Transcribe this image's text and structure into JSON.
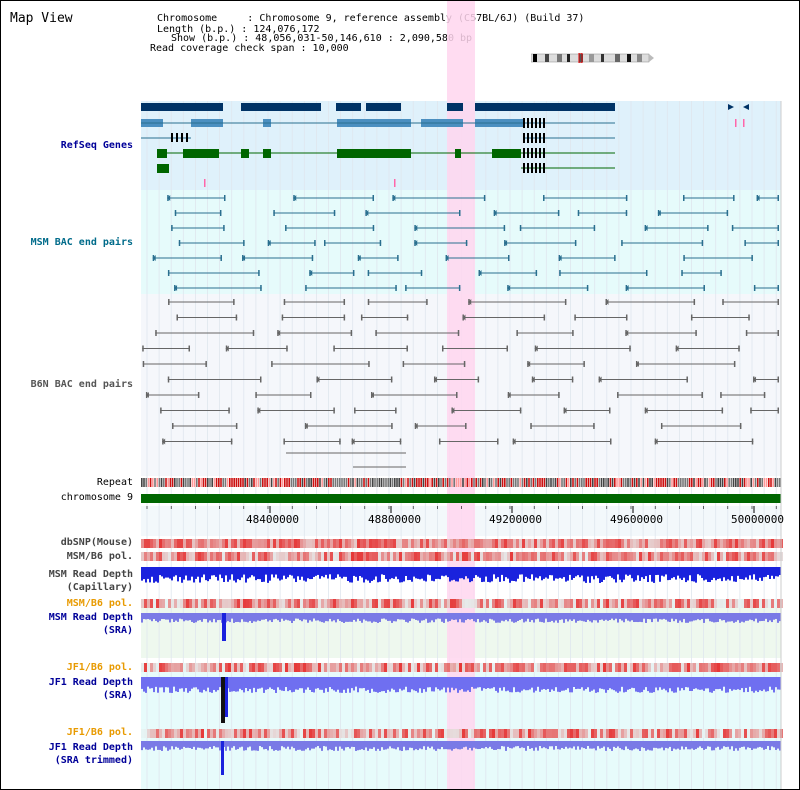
{
  "title": "Map View",
  "info": {
    "chromosome": "Chromosome     : Chromosome 9, reference assembly (C57BL/6J) (Build 37)",
    "length": "Length (b.p.) : 124,076,172",
    "show": "Show (b.p.) : 48,056,031-50,146,610 : 2,090,580 bp",
    "coverage": "Read coverage check span : 10,000"
  },
  "tracks": {
    "refseq": "RefSeq Genes",
    "msm_bac": "MSM BAC end pairs",
    "b6n_bac": "B6N BAC end pairs",
    "repeat": "Repeat",
    "chromosome": "chromosome 9",
    "dbsnp": "dbSNP(Mouse)",
    "msm_pol1": "MSM/B6 pol.",
    "msm_depth_cap_1": "MSM Read Depth",
    "msm_depth_cap_2": "(Capillary)",
    "msm_pol2": "MSM/B6 pol.",
    "msm_depth_sra_1": "MSM Read Depth",
    "msm_depth_sra_2": "(SRA)",
    "jf1_pol1": "JF1/B6 pol.",
    "jf1_depth_sra_1": "JF1 Read Depth",
    "jf1_depth_sra_2": "(SRA)",
    "jf1_pol2": "JF1/B6 pol.",
    "jf1_depth_trim_1": "JF1 Read Depth",
    "jf1_depth_trim_2": "(SRA trimmed)"
  },
  "axis": {
    "ticks": [
      "48400000",
      "48800000",
      "49200000",
      "49600000",
      "50000000"
    ]
  },
  "colors": {
    "refseq_bg": "#dff1fb",
    "msm_bg": "#e6fbfb",
    "highlight": "#ffd6ef",
    "dark_gene": "#003366",
    "mid_gene": "#4b8fc0",
    "green_gene": "#006600",
    "teal": "#2a6f8f",
    "grey": "#666666",
    "chrom": "#006600",
    "depth_blue": "#1111cc",
    "pol_red": "#e23030",
    "orange_label": "#e89a00",
    "navy_label": "#000099",
    "teal_label": "#006b8a"
  }
}
